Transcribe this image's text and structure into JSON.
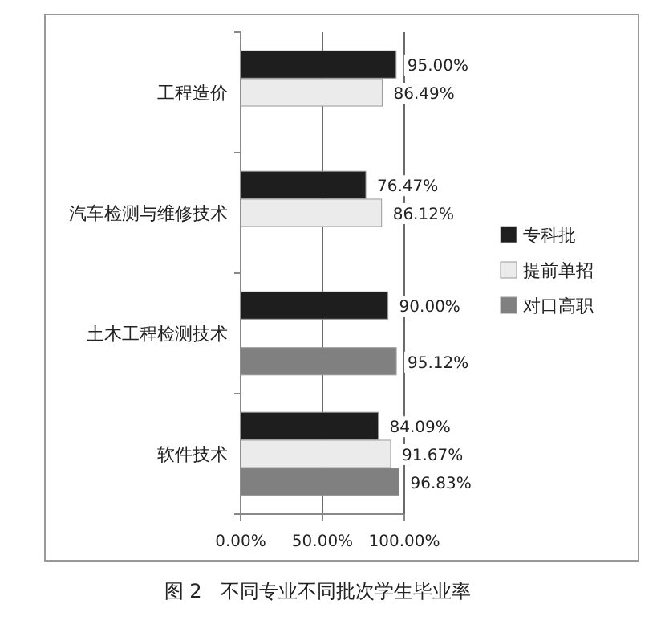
{
  "chart_data": {
    "type": "bar",
    "orientation": "horizontal",
    "categories": [
      "工程造价",
      "汽车检测与维修技术",
      "土木工程检测技术",
      "软件技术"
    ],
    "series": [
      {
        "name": "专科批",
        "color": "#1e1e1e",
        "values": [
          95.0,
          76.47,
          90.0,
          84.09
        ],
        "value_labels": [
          "95.00%",
          "76.47%",
          "90.00%",
          "84.09%"
        ]
      },
      {
        "name": "提前单招",
        "color": "#ebebeb",
        "values": [
          86.49,
          86.12,
          null,
          91.67
        ],
        "value_labels": [
          "86.49%",
          "86.12%",
          null,
          "91.67%"
        ]
      },
      {
        "name": "对口高职",
        "color": "#808080",
        "values": [
          null,
          null,
          95.12,
          96.83
        ],
        "value_labels": [
          null,
          null,
          "95.12%",
          "96.83%"
        ]
      }
    ],
    "xlim": [
      0,
      100
    ],
    "xticks": [
      {
        "value": 0,
        "label": "0.00%"
      },
      {
        "value": 50,
        "label": "50.00%"
      },
      {
        "value": 100,
        "label": "100.00%"
      }
    ],
    "grid": "x",
    "legend": "right",
    "annotations": [
      "图 2　不同专业不同批次学生毕业率"
    ]
  }
}
